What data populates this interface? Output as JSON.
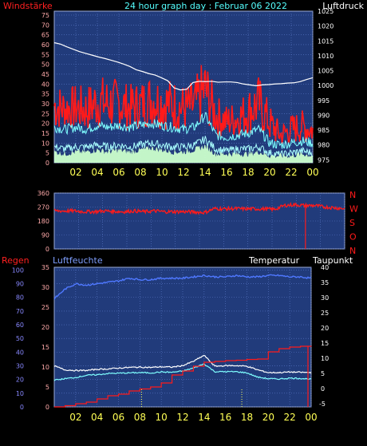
{
  "header": {
    "wind_label": "Windstärke",
    "title": "24 hour graph day : Februar 06 2022",
    "pressure_label": "Luftdruck"
  },
  "lower_header": {
    "rain_label": "Regen",
    "humidity_label": "Luftfeuchte",
    "temp_label": "Temperatur",
    "dew_label": "Taupunkt"
  },
  "colors": {
    "plot_bg": "#213b7b",
    "grid": "#5b79c9",
    "frame": "#9aaad6",
    "red": "#ff1a1a",
    "yellow": "#ffff55",
    "cyan": "#7fffff",
    "white": "#ffffff",
    "pale_green": "#ccffcc",
    "axis_text_left": "#ffaaaa",
    "axis_text_right": "#ffffff"
  },
  "chart_data": [
    {
      "type": "line",
      "name": "wind-pressure",
      "x_ticks": [
        "02",
        "04",
        "06",
        "08",
        "10",
        "12",
        "14",
        "16",
        "18",
        "20",
        "22",
        "00"
      ],
      "y_left_ticks": [
        0,
        5,
        10,
        15,
        20,
        25,
        30,
        35,
        40,
        45,
        50,
        55,
        60,
        65,
        70,
        75
      ],
      "y_left_range": [
        0,
        77
      ],
      "y_right_ticks": [
        975,
        980,
        985,
        990,
        995,
        1000,
        1005,
        1010,
        1015,
        1020,
        1025
      ],
      "y_right_range": [
        974,
        1025
      ],
      "pressure_hourly": [
        1014.4,
        1013.9,
        1013.0,
        1012.2,
        1011.4,
        1010.8,
        1010.2,
        1009.6,
        1009.1,
        1008.5,
        1007.9,
        1007.2,
        1006.4,
        1005.3,
        1004.7,
        1004.0,
        1003.5,
        1002.6,
        1001.6,
        999.2,
        998.5,
        998.7,
        1001.0,
        1001.4,
        1001.3,
        1001.4,
        1001.1,
        1001.2,
        1001.2,
        1001.0,
        1000.5,
        1000.2,
        999.9,
        1000.2,
        1000.3,
        1000.5,
        1000.6,
        1000.8,
        1000.9,
        1001.3,
        1002.0,
        1002.6
      ],
      "gust_band_hours": [
        0,
        1,
        2,
        3,
        4,
        5,
        6,
        7,
        8,
        9,
        10,
        11,
        12,
        13,
        14,
        15,
        16,
        17,
        18,
        19,
        20,
        21,
        22,
        23,
        24
      ],
      "gust_high": [
        42,
        38,
        40,
        39,
        45,
        44,
        43,
        40,
        42,
        46,
        44,
        43,
        40,
        42,
        55,
        35,
        30,
        32,
        38,
        45,
        30,
        20,
        25,
        27,
        24
      ],
      "gust_low": [
        16,
        17,
        16,
        15,
        17,
        16,
        17,
        16,
        17,
        18,
        17,
        16,
        15,
        16,
        20,
        13,
        12,
        13,
        14,
        16,
        10,
        8,
        9,
        10,
        9
      ],
      "wind_avg": [
        18,
        17,
        18,
        17,
        19,
        18,
        19,
        18,
        19,
        20,
        19,
        18,
        17,
        18,
        24,
        14,
        13,
        14,
        15,
        17,
        10,
        9,
        10,
        11,
        10
      ],
      "wind_low": [
        8,
        7,
        8,
        8,
        9,
        8,
        9,
        8,
        9,
        10,
        9,
        8,
        8,
        9,
        12,
        7,
        6,
        7,
        7,
        8,
        5,
        4,
        5,
        6,
        5
      ],
      "calm_low": [
        4,
        3,
        4,
        4,
        5,
        4,
        5,
        4,
        5,
        6,
        5,
        4,
        4,
        5,
        7,
        3,
        3,
        3,
        3,
        4,
        2,
        2,
        2,
        3,
        2
      ]
    },
    {
      "type": "line",
      "name": "wind-direction",
      "x_ticks": [],
      "y_left_ticks": [
        0,
        90,
        180,
        270,
        360
      ],
      "y_left_range": [
        0,
        360
      ],
      "y_right_labels": [
        "N",
        "W",
        "S",
        "O",
        "N"
      ],
      "direction_hourly": [
        245,
        245,
        245,
        240,
        240,
        245,
        242,
        240,
        245,
        240,
        245,
        240,
        240,
        240,
        238,
        235,
        260,
        258,
        260,
        258,
        258,
        258,
        255,
        280,
        285,
        280,
        280,
        270,
        265,
        260
      ]
    },
    {
      "type": "line",
      "name": "rain-humidity-temperature",
      "x_ticks": [
        "02",
        "04",
        "06",
        "08",
        "10",
        "12",
        "14",
        "16",
        "18",
        "20",
        "22",
        "00"
      ],
      "y_left_ticks": [
        0,
        10,
        20,
        30,
        40,
        50,
        60,
        70,
        80,
        90,
        100
      ],
      "y_left_range": [
        0,
        102
      ],
      "y_left2_ticks": [
        0,
        5,
        10,
        15,
        20,
        25,
        30,
        35
      ],
      "y_right_ticks": [
        0,
        5,
        10,
        15,
        20,
        25,
        30,
        35,
        40
      ],
      "y_right_range": [
        -6,
        40
      ],
      "humidity_hourly": [
        79,
        86,
        90,
        89,
        90,
        91,
        92,
        94,
        93,
        93,
        94,
        94,
        94,
        95,
        96,
        95,
        95,
        96,
        95,
        95,
        96,
        96,
        95,
        95,
        94
      ],
      "temp_hourly": [
        7.5,
        6.2,
        6.0,
        6.0,
        6.4,
        6.5,
        6.8,
        7.0,
        7.1,
        7.0,
        7.2,
        7.1,
        7.6,
        9.0,
        11.0,
        7.4,
        7.6,
        7.6,
        7.4,
        6.2,
        5.3,
        5.3,
        5.5,
        5.4,
        5.3
      ],
      "dew_hourly": [
        2.8,
        3.3,
        3.7,
        4.4,
        4.6,
        5.0,
        5.1,
        5.2,
        5.3,
        5.2,
        5.5,
        5.4,
        5.8,
        6.8,
        8.2,
        5.6,
        5.6,
        5.6,
        5.2,
        3.8,
        3.3,
        3.2,
        3.5,
        3.4,
        3.1
      ],
      "rain_cumulative": [
        0,
        0.3,
        0.8,
        1.2,
        2.0,
        2.8,
        3.2,
        4.0,
        4.5,
        5.0,
        6.0,
        8.0,
        9.0,
        10.2,
        11.2,
        11.4,
        11.6,
        11.7,
        11.9,
        12.0,
        13.8,
        14.6,
        15.0,
        15.2,
        15.3
      ]
    }
  ]
}
